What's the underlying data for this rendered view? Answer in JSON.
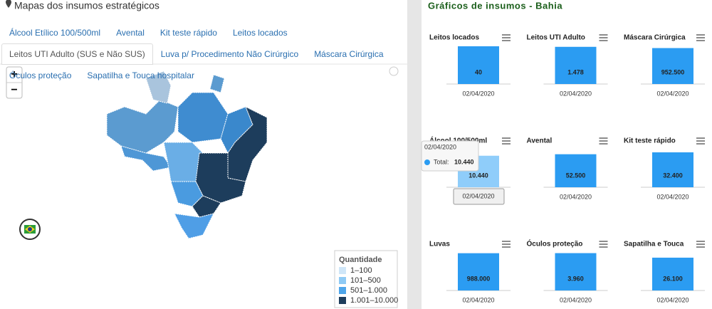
{
  "header": {
    "title": "Mapas dos insumos estratégicos"
  },
  "tabs": [
    "Álcool Etílico 100/500ml",
    "Avental",
    "Kit teste rápido",
    "Leitos locados",
    "Leitos UTI Adulto (SUS e Não SUS)",
    "Luva p/ Procedimento Não Cirúrgico",
    "Máscara Cirúrgica",
    "Óculos proteção",
    "Sapatilha e Touca hospitalar"
  ],
  "active_tab": 4,
  "map": {
    "zoom_in": "+",
    "zoom_out": "−",
    "legend": {
      "title": "Quantidade",
      "items": [
        {
          "label": "1–100",
          "color": "#cfe6f8"
        },
        {
          "label": "101–500",
          "color": "#8ecaf5"
        },
        {
          "label": "501–1.000",
          "color": "#4ea5ea"
        },
        {
          "label": "1.001–10.000",
          "color": "#1d3d5c"
        }
      ]
    }
  },
  "panel_title": "Gráficos de insumos - Bahia",
  "chart_data": [
    {
      "type": "bar",
      "title": "Leitos locados",
      "categories": [
        "02/04/2020"
      ],
      "values": [
        40
      ],
      "color": "#2b9cf2",
      "ylim": [
        0,
        40
      ]
    },
    {
      "type": "bar",
      "title": "Leitos UTI Adulto",
      "categories": [
        "02/04/2020"
      ],
      "values": [
        1478
      ],
      "value_labels": [
        "1.478"
      ],
      "color": "#2b9cf2",
      "ylim": [
        0,
        1500
      ]
    },
    {
      "type": "bar",
      "title": "Máscara Cirúrgica",
      "categories": [
        "02/04/2020"
      ],
      "values": [
        952500
      ],
      "value_labels": [
        "952.500"
      ],
      "color": "#2b9cf2",
      "ylim": [
        0,
        1000000
      ]
    },
    {
      "type": "bar",
      "title": "Álcool 100/500ml",
      "categories": [
        "02/04/2020"
      ],
      "values": [
        10440
      ],
      "value_labels": [
        "10.440"
      ],
      "color": "#8fcdfa",
      "ylim": [
        0,
        12500
      ]
    },
    {
      "type": "bar",
      "title": "Avental",
      "categories": [
        "02/04/2020"
      ],
      "values": [
        52500
      ],
      "value_labels": [
        "52.500"
      ],
      "color": "#2b9cf2",
      "ylim": [
        0,
        60000
      ]
    },
    {
      "type": "bar",
      "title": "Kit teste rápido",
      "categories": [
        "02/04/2020"
      ],
      "values": [
        32400
      ],
      "value_labels": [
        "32.400"
      ],
      "color": "#2b9cf2",
      "ylim": [
        0,
        35000
      ]
    },
    {
      "type": "bar",
      "title": "Luvas",
      "categories": [
        "02/04/2020"
      ],
      "values": [
        988000
      ],
      "value_labels": [
        "988.000"
      ],
      "color": "#2b9cf2",
      "ylim": [
        0,
        1000000
      ]
    },
    {
      "type": "bar",
      "title": "Óculos proteção",
      "categories": [
        "02/04/2020"
      ],
      "values": [
        3960
      ],
      "value_labels": [
        "3.960"
      ],
      "color": "#2b9cf2",
      "ylim": [
        0,
        4000
      ]
    },
    {
      "type": "bar",
      "title": "Sapatilha e Touca",
      "categories": [
        "02/04/2020"
      ],
      "values": [
        26100
      ],
      "value_labels": [
        "26.100"
      ],
      "color": "#2b9cf2",
      "ylim": [
        0,
        30000
      ]
    }
  ],
  "tooltip": {
    "chart": 3,
    "title": "02/04/2020",
    "label": "Total:",
    "value": "10.440",
    "category": "02/04/2020"
  }
}
